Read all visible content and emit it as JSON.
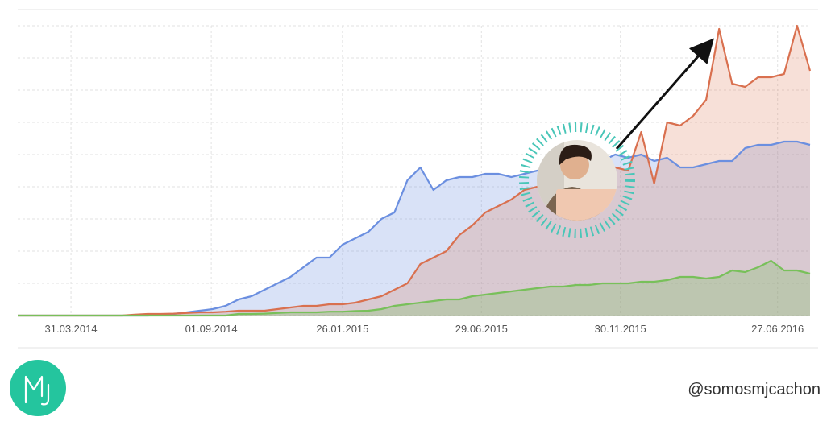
{
  "chart_data": {
    "type": "area",
    "x": [
      0,
      1,
      2,
      3,
      4,
      5,
      6,
      7,
      8,
      9,
      10,
      11,
      12,
      13,
      14,
      15,
      16,
      17,
      18,
      19,
      20,
      21,
      22,
      23,
      24,
      25,
      26,
      27,
      28,
      29,
      30,
      31,
      32,
      33,
      34,
      35,
      36,
      37,
      38,
      39,
      40,
      41,
      42,
      43,
      44,
      45,
      46,
      47,
      48,
      49,
      50,
      51,
      52,
      53,
      54,
      55,
      56,
      57,
      58,
      59,
      60,
      61
    ],
    "xlim": [
      0,
      61
    ],
    "xticks": [
      {
        "value": 4.1,
        "label": "31.03.2014"
      },
      {
        "value": 14.9,
        "label": "01.09.2014"
      },
      {
        "value": 25.0,
        "label": "26.01.2015"
      },
      {
        "value": 35.7,
        "label": "29.06.2015"
      },
      {
        "value": 46.4,
        "label": "30.11.2015"
      },
      {
        "value": 58.5,
        "label": "27.06.2016"
      }
    ],
    "ylim": [
      0,
      9
    ],
    "yticks": [
      0,
      1,
      2,
      3,
      4,
      5,
      6,
      7,
      8,
      9
    ],
    "grid": true,
    "series": [
      {
        "color": "#6b8fe0",
        "values": [
          0,
          0,
          0,
          0,
          0,
          0,
          0,
          0,
          0,
          0,
          0,
          0.02,
          0.05,
          0.1,
          0.15,
          0.2,
          0.3,
          0.5,
          0.6,
          0.8,
          1.0,
          1.2,
          1.5,
          1.8,
          1.8,
          2.2,
          2.4,
          2.6,
          3.0,
          3.2,
          4.2,
          4.6,
          3.9,
          4.2,
          4.3,
          4.3,
          4.4,
          4.4,
          4.3,
          4.4,
          4.5,
          4.5,
          4.6,
          4.6,
          4.7,
          4.8,
          5.0,
          4.9,
          5.0,
          4.8,
          4.9,
          4.6,
          4.6,
          4.7,
          4.8,
          4.8,
          5.2,
          5.3,
          5.3,
          5.4,
          5.4,
          5.3
        ]
      },
      {
        "color": "#d9704f",
        "values": [
          0,
          0,
          0,
          0,
          0,
          0,
          0,
          0,
          0,
          0.03,
          0.05,
          0.05,
          0.06,
          0.08,
          0.1,
          0.1,
          0.12,
          0.15,
          0.15,
          0.15,
          0.2,
          0.25,
          0.3,
          0.3,
          0.35,
          0.35,
          0.4,
          0.5,
          0.6,
          0.8,
          1.0,
          1.6,
          1.8,
          2.0,
          2.5,
          2.8,
          3.2,
          3.4,
          3.6,
          3.9,
          4.0,
          4.2,
          4.3,
          4.3,
          4.4,
          4.5,
          4.6,
          4.5,
          5.7,
          4.1,
          6.0,
          5.9,
          6.2,
          6.7,
          8.9,
          7.2,
          7.1,
          7.4,
          7.4,
          7.5,
          9.0,
          7.6
        ]
      },
      {
        "color": "#78c05a",
        "values": [
          0,
          0,
          0,
          0,
          0,
          0,
          0,
          0,
          0,
          0,
          0,
          0,
          0,
          0,
          0,
          0,
          0,
          0.05,
          0.05,
          0.06,
          0.08,
          0.1,
          0.1,
          0.1,
          0.12,
          0.12,
          0.14,
          0.15,
          0.2,
          0.3,
          0.35,
          0.4,
          0.45,
          0.5,
          0.5,
          0.6,
          0.65,
          0.7,
          0.75,
          0.8,
          0.85,
          0.9,
          0.9,
          0.95,
          0.95,
          1.0,
          1.0,
          1.0,
          1.05,
          1.05,
          1.1,
          1.2,
          1.2,
          1.15,
          1.2,
          1.4,
          1.35,
          1.5,
          1.7,
          1.4,
          1.4,
          1.3
        ]
      }
    ]
  },
  "footer": {
    "handle": "@somosmjcachon"
  }
}
